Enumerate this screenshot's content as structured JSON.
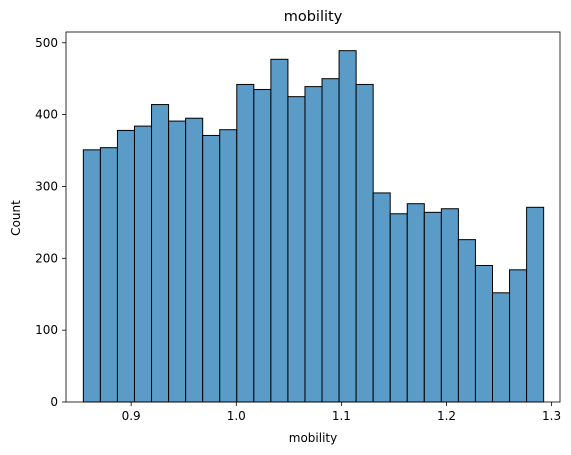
{
  "chart_data": {
    "type": "bar",
    "title": "mobility",
    "xlabel": "mobility",
    "ylabel": "Count",
    "xlim": [
      0.838,
      1.308
    ],
    "ylim": [
      0,
      515
    ],
    "xticks": [
      "0.9",
      "1.0",
      "1.1",
      "1.2",
      "1.3"
    ],
    "yticks": [
      "0",
      "100",
      "200",
      "300",
      "400",
      "500"
    ],
    "bin_start": 0.8545,
    "bin_width": 0.01622,
    "values": [
      351,
      354,
      378,
      384,
      414,
      391,
      395,
      371,
      379,
      442,
      435,
      477,
      425,
      439,
      450,
      489,
      442,
      291,
      262,
      276,
      264,
      269,
      226,
      190,
      152,
      184,
      271
    ],
    "grid": false,
    "legend": "none",
    "colors": {
      "bar_fill": "#5a9bc8",
      "bar_edge": "#000000",
      "axis": "#000000"
    }
  }
}
